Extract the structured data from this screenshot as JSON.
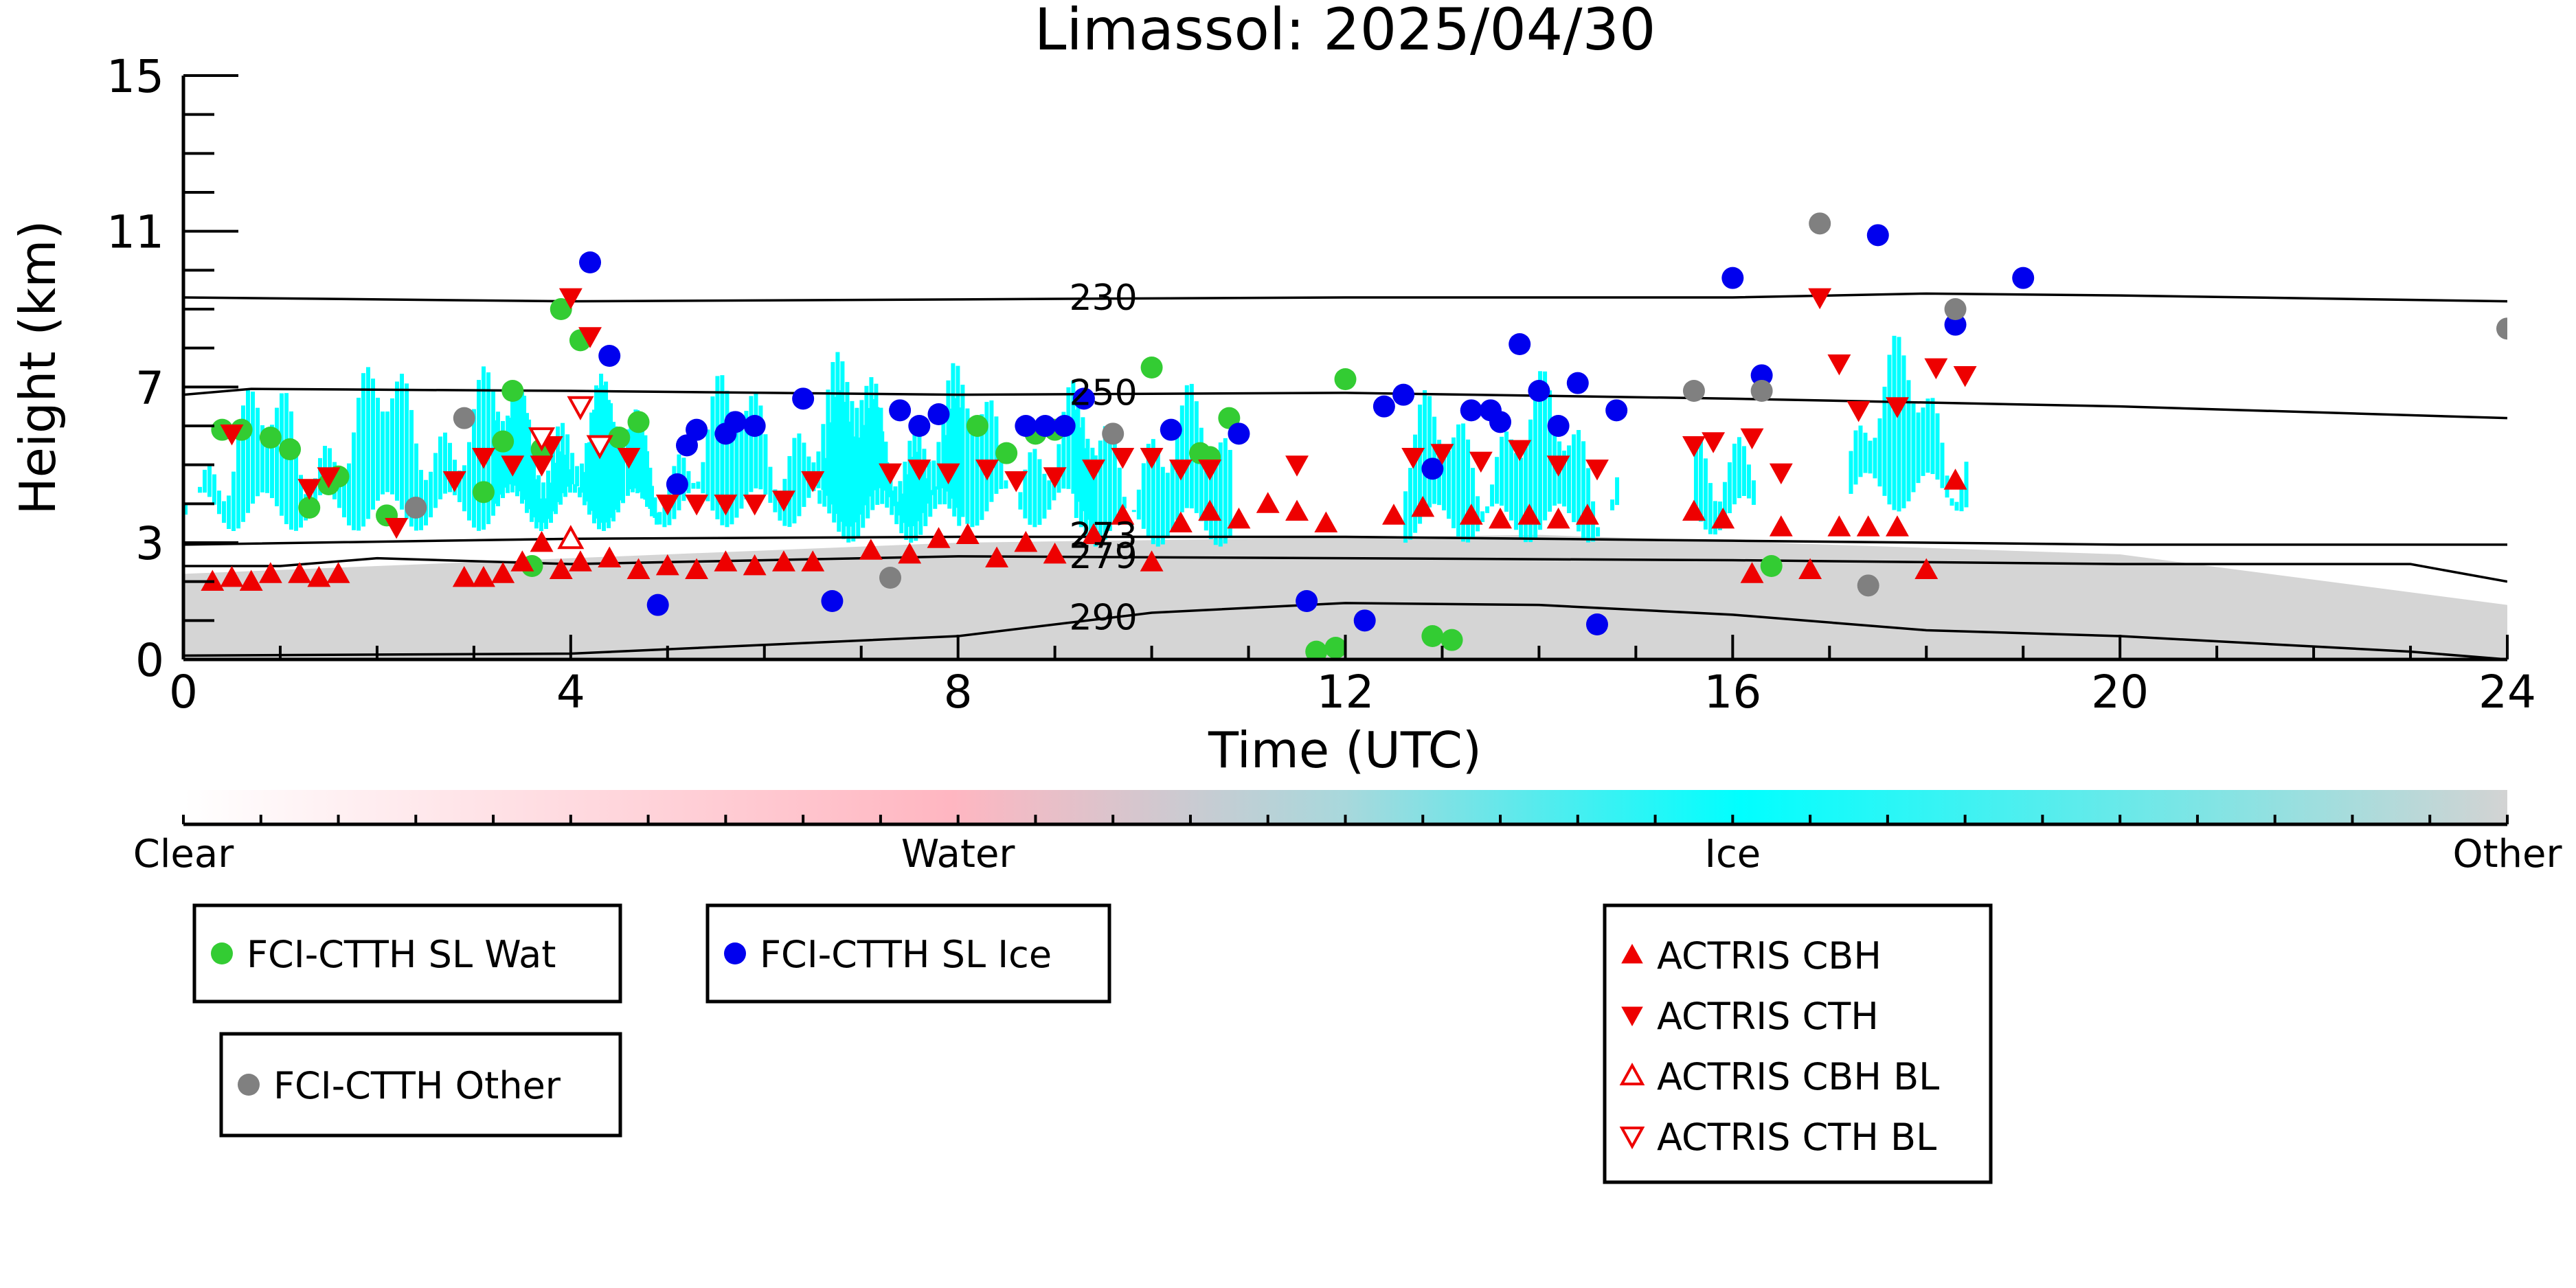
{
  "chart_data": {
    "type": "scatter",
    "title": "Limassol: 2025/04/30",
    "xlabel": "Time (UTC)",
    "ylabel": "Height (km)",
    "xlim": [
      0,
      24
    ],
    "ylim": [
      0,
      15
    ],
    "x_ticks": [
      0,
      4,
      8,
      12,
      16,
      20,
      24
    ],
    "y_ticks": [
      0,
      3,
      7,
      11,
      15
    ],
    "colorbar": {
      "labels": [
        "Clear",
        "Water",
        "Ice",
        "Other"
      ],
      "colors": [
        "#ffffff",
        "#ffb6c1",
        "#00ffff",
        "#d3d3d3"
      ]
    },
    "contours": [
      {
        "label": "230",
        "points": [
          [
            0,
            9.3
          ],
          [
            4,
            9.2
          ],
          [
            8,
            9.25
          ],
          [
            12,
            9.3
          ],
          [
            16,
            9.3
          ],
          [
            18,
            9.4
          ],
          [
            20,
            9.35
          ],
          [
            24,
            9.2
          ]
        ]
      },
      {
        "label": "250",
        "points": [
          [
            0,
            6.8
          ],
          [
            0.7,
            6.95
          ],
          [
            4,
            6.9
          ],
          [
            8,
            6.8
          ],
          [
            12,
            6.85
          ],
          [
            16,
            6.7
          ],
          [
            20,
            6.5
          ],
          [
            24,
            6.2
          ]
        ]
      },
      {
        "label": "273",
        "points": [
          [
            0,
            2.95
          ],
          [
            4,
            3.1
          ],
          [
            8,
            3.15
          ],
          [
            12,
            3.15
          ],
          [
            16,
            3.05
          ],
          [
            20,
            2.95
          ],
          [
            24,
            2.95
          ]
        ]
      },
      {
        "label": "279",
        "points": [
          [
            0,
            2.4
          ],
          [
            1,
            2.4
          ],
          [
            2,
            2.6
          ],
          [
            4,
            2.45
          ],
          [
            8,
            2.65
          ],
          [
            12,
            2.6
          ],
          [
            16,
            2.55
          ],
          [
            20,
            2.45
          ],
          [
            23,
            2.45
          ],
          [
            24,
            2.0
          ]
        ]
      },
      {
        "label": "290",
        "points": [
          [
            0,
            0.1
          ],
          [
            4,
            0.15
          ],
          [
            8,
            0.6
          ],
          [
            10,
            1.2
          ],
          [
            12,
            1.45
          ],
          [
            14,
            1.4
          ],
          [
            16,
            1.15
          ],
          [
            18,
            0.75
          ],
          [
            20,
            0.6
          ],
          [
            23,
            0.2
          ],
          [
            24,
            0.0
          ]
        ]
      }
    ],
    "background_layers": [
      {
        "class": "Other",
        "x_range": [
          0,
          24
        ],
        "top": [
          [
            0,
            2.2
          ],
          [
            8,
            3.0
          ],
          [
            14,
            3.2
          ],
          [
            20,
            2.7
          ],
          [
            24,
            1.4
          ]
        ]
      },
      {
        "class": "Ice",
        "regions": [
          [
            0,
            4.9,
            0.9
          ],
          [
            3.2,
            4.5,
            1.1
          ],
          [
            4.6,
            9.4,
            1.0
          ],
          [
            6.5,
            8.0,
            0.6
          ],
          [
            9.2,
            10.8,
            0.5
          ],
          [
            12.6,
            14.8,
            0.6
          ],
          [
            15.6,
            16.2,
            0.8
          ],
          [
            17.2,
            18.4,
            1.4
          ]
        ]
      }
    ],
    "series": [
      {
        "name": "FCI-CTTH SL Wat",
        "color": "#33cc33",
        "marker": "circle",
        "x": [
          0.4,
          0.6,
          0.9,
          1.1,
          1.3,
          1.5,
          1.6,
          2.1,
          3.1,
          3.3,
          3.4,
          3.6,
          3.7,
          3.9,
          4.1,
          4.5,
          4.7,
          8.2,
          8.5,
          8.8,
          9.0,
          10.0,
          10.5,
          10.6,
          10.8,
          12.0,
          11.7,
          11.9,
          12.9,
          13.1,
          16.4
        ],
        "y": [
          5.9,
          5.9,
          5.7,
          5.4,
          3.9,
          4.5,
          4.7,
          3.7,
          4.3,
          5.6,
          6.9,
          2.4,
          5.4,
          9.0,
          8.2,
          5.7,
          6.1,
          6.0,
          5.3,
          5.8,
          5.9,
          7.5,
          5.3,
          5.2,
          6.2,
          7.2,
          0.2,
          0.3,
          0.6,
          0.5,
          2.4
        ]
      },
      {
        "name": "FCI-CTTH SL Ice",
        "color": "#0000ee",
        "marker": "circle",
        "x": [
          4.2,
          4.4,
          4.9,
          5.1,
          5.2,
          5.3,
          5.6,
          5.7,
          5.9,
          6.4,
          6.7,
          7.4,
          7.6,
          7.8,
          8.7,
          8.9,
          9.1,
          9.3,
          10.2,
          10.9,
          11.6,
          12.2,
          12.4,
          12.6,
          12.9,
          13.3,
          13.5,
          13.6,
          13.8,
          14.0,
          14.2,
          14.4,
          14.6,
          14.8,
          16.0,
          16.3,
          17.5,
          18.3,
          19.0
        ],
        "y": [
          10.2,
          7.8,
          1.4,
          4.5,
          5.5,
          5.9,
          5.8,
          6.1,
          6.0,
          6.7,
          1.5,
          6.4,
          6.0,
          6.3,
          6.0,
          6.0,
          6.0,
          6.7,
          5.9,
          5.8,
          1.5,
          1.0,
          6.5,
          6.8,
          4.9,
          6.4,
          6.4,
          6.1,
          8.1,
          6.9,
          6.0,
          7.1,
          0.9,
          6.4,
          9.8,
          7.3,
          10.9,
          8.6,
          9.8
        ]
      },
      {
        "name": "FCI-CTTH Other",
        "color": "#808080",
        "marker": "circle",
        "x": [
          2.4,
          2.9,
          7.3,
          9.6,
          15.6,
          16.3,
          16.9,
          17.4,
          18.3,
          24.0
        ],
        "y": [
          3.9,
          6.2,
          2.1,
          5.8,
          6.9,
          6.9,
          11.2,
          1.9,
          9.0,
          8.5
        ]
      },
      {
        "name": "ACTRIS CBH",
        "color": "#ee0000",
        "marker": "triangle-up",
        "x": [
          0.3,
          0.5,
          0.7,
          0.9,
          1.2,
          1.4,
          1.6,
          2.9,
          3.1,
          3.3,
          3.5,
          3.7,
          3.9,
          4.1,
          4.4,
          4.7,
          5.0,
          5.3,
          5.6,
          5.9,
          6.2,
          6.5,
          7.1,
          7.5,
          7.8,
          8.1,
          8.4,
          8.7,
          9.0,
          9.4,
          9.7,
          10.0,
          10.3,
          10.6,
          10.9,
          11.2,
          11.5,
          11.8,
          12.5,
          12.8,
          13.3,
          13.6,
          13.9,
          14.2,
          14.5,
          15.6,
          15.9,
          16.2,
          16.5,
          16.8,
          17.1,
          17.4,
          17.7,
          18.0,
          18.3
        ],
        "y": [
          2.0,
          2.1,
          2.0,
          2.2,
          2.2,
          2.1,
          2.2,
          2.1,
          2.1,
          2.2,
          2.5,
          3.0,
          2.3,
          2.5,
          2.6,
          2.3,
          2.4,
          2.3,
          2.5,
          2.4,
          2.5,
          2.5,
          2.8,
          2.7,
          3.1,
          3.2,
          2.6,
          3.0,
          2.7,
          3.2,
          3.7,
          2.5,
          3.5,
          3.8,
          3.6,
          4.0,
          3.8,
          3.5,
          3.7,
          3.9,
          3.7,
          3.6,
          3.7,
          3.6,
          3.7,
          3.8,
          3.6,
          2.2,
          3.4,
          2.3,
          3.4,
          3.4,
          3.4,
          2.3,
          4.6
        ],
        "fill": true
      },
      {
        "name": "ACTRIS CTH",
        "color": "#ee0000",
        "marker": "triangle-down",
        "x": [
          0.5,
          1.3,
          1.5,
          2.2,
          2.8,
          3.1,
          3.4,
          3.7,
          3.8,
          4.0,
          4.2,
          4.6,
          5.0,
          5.3,
          5.6,
          5.9,
          6.2,
          6.5,
          7.3,
          7.6,
          7.9,
          8.3,
          8.6,
          9.0,
          9.4,
          9.7,
          10.0,
          10.3,
          10.6,
          11.5,
          12.7,
          13.0,
          13.4,
          13.8,
          14.2,
          14.6,
          15.6,
          15.8,
          16.2,
          16.5,
          16.9,
          17.1,
          17.3,
          17.7,
          18.1,
          18.4
        ],
        "y": [
          5.8,
          4.4,
          4.7,
          3.4,
          4.6,
          5.2,
          5.0,
          5.0,
          5.5,
          9.3,
          8.3,
          5.2,
          4.0,
          4.0,
          4.0,
          4.0,
          4.1,
          4.6,
          4.8,
          4.9,
          4.8,
          4.9,
          4.6,
          4.7,
          4.9,
          5.2,
          5.2,
          4.9,
          4.9,
          5.0,
          5.2,
          5.3,
          5.1,
          5.4,
          5.0,
          4.9,
          5.5,
          5.6,
          5.7,
          4.8,
          9.3,
          7.6,
          6.4,
          6.5,
          7.5,
          7.3
        ],
        "fill": true
      },
      {
        "name": "ACTRIS CBH BL",
        "color": "#ee0000",
        "marker": "triangle-up",
        "x": [
          4.0
        ],
        "y": [
          3.1
        ],
        "fill": false
      },
      {
        "name": "ACTRIS CTH BL",
        "color": "#ee0000",
        "marker": "triangle-down",
        "x": [
          3.7,
          4.1,
          4.3
        ],
        "y": [
          5.7,
          6.5,
          5.5
        ],
        "fill": false
      }
    ],
    "legend": {
      "groups": [
        [
          "FCI-CTTH SL Wat"
        ],
        [
          "FCI-CTTH SL Ice"
        ],
        [
          "FCI-CTTH Other"
        ],
        [
          "ACTRIS CBH",
          "ACTRIS CTH",
          "ACTRIS CBH BL",
          "ACTRIS CTH BL"
        ]
      ]
    }
  }
}
